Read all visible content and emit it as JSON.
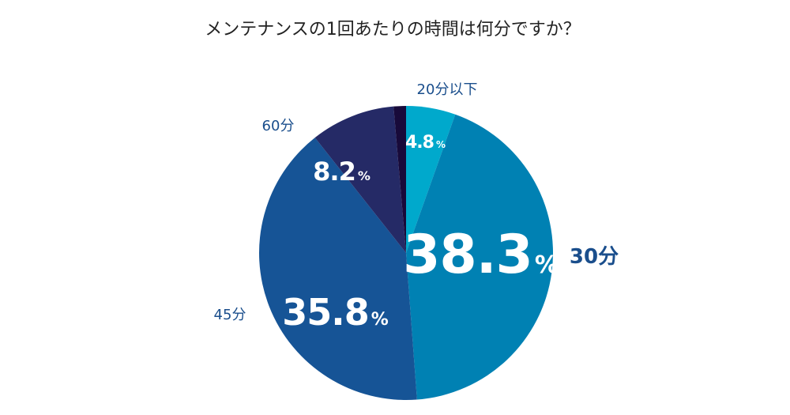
{
  "chart_data": {
    "type": "pie",
    "title": "メンテナンスの1回あたりの時間は何分ですか？",
    "start_angle_deg": 0,
    "direction": "clockwise",
    "slices": [
      {
        "label": "20分以下",
        "value": 4.8,
        "value_text": "4.8",
        "unit": "%",
        "color": "#00a9cc"
      },
      {
        "label": "30分",
        "value": 38.3,
        "value_text": "38.3",
        "unit": "%",
        "color": "#0081b3"
      },
      {
        "label": "45分",
        "value": 35.8,
        "value_text": "35.8",
        "unit": "%",
        "color": "#165496"
      },
      {
        "label": "60分",
        "value": 8.2,
        "value_text": "8.2",
        "unit": "%",
        "color": "#252a66"
      },
      {
        "label": "",
        "value": 1.2,
        "value_text": "",
        "unit": "",
        "color": "#180a3a"
      }
    ]
  }
}
